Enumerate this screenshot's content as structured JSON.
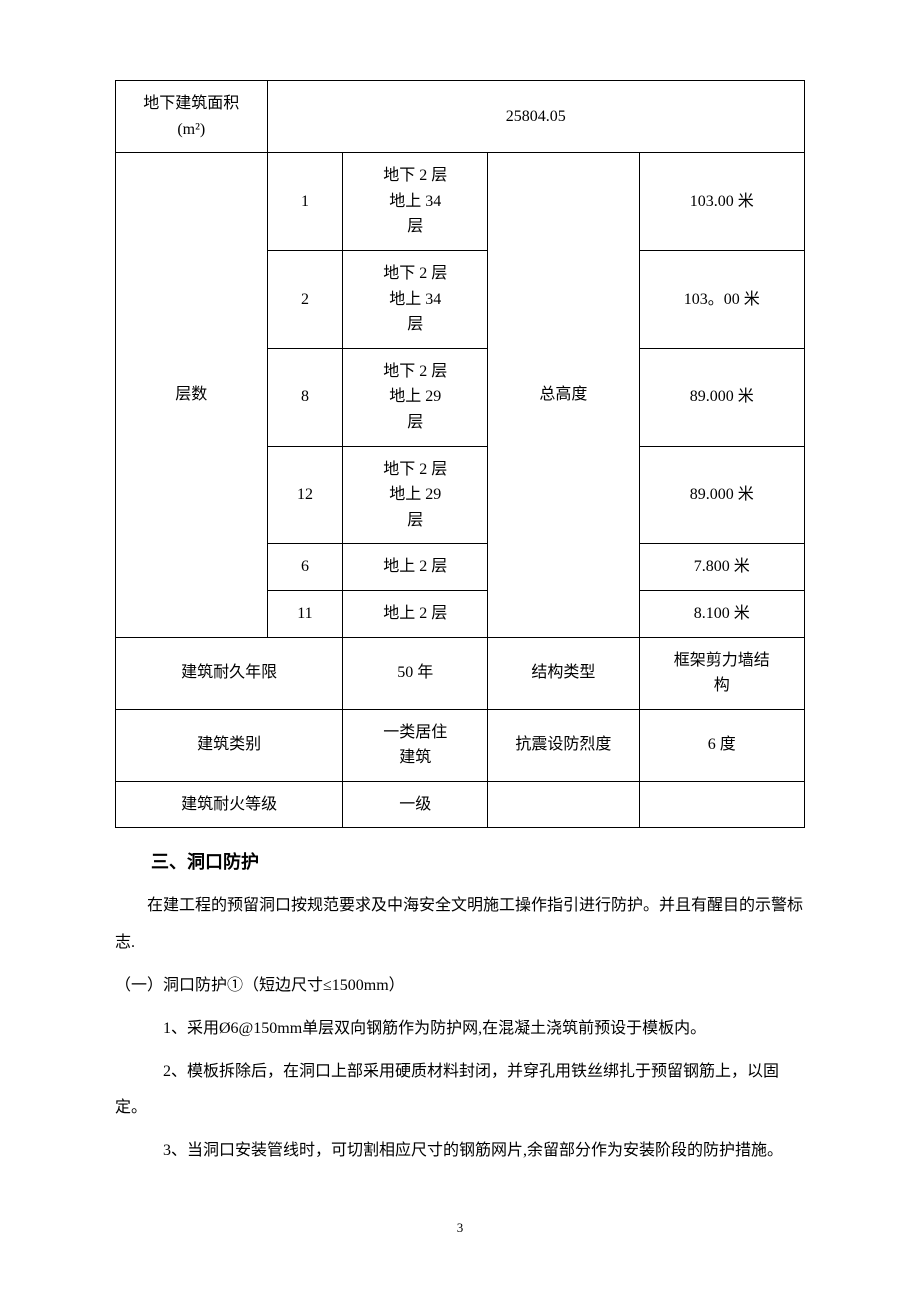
{
  "table": {
    "row_underground_area": {
      "label": "地下建筑面积\n(m²)",
      "value": "25804.05"
    },
    "floors_section": {
      "row_label": "层数",
      "height_label": "总高度",
      "rows": [
        {
          "num": "1",
          "desc": "地下 2 层\n地上 34\n层",
          "height": "103.00 米"
        },
        {
          "num": "2",
          "desc": "地下 2 层\n地上 34\n层",
          "height": "103。00 米"
        },
        {
          "num": "8",
          "desc": "地下 2 层\n地上 29\n层",
          "height": "89.000 米"
        },
        {
          "num": "12",
          "desc": "地下 2 层\n地上 29\n层",
          "height": "89.000 米"
        },
        {
          "num": "6",
          "desc": "地上 2 层",
          "height": "7.800 米"
        },
        {
          "num": "11",
          "desc": "地上 2 层",
          "height": "8.100 米"
        }
      ]
    },
    "durability": {
      "label": "建筑耐久年限",
      "value": "50 年",
      "structure_label": "结构类型",
      "structure_value": "框架剪力墙结\n构"
    },
    "category": {
      "label": "建筑类别",
      "value": "一类居住\n建筑",
      "seismic_label": "抗震设防烈度",
      "seismic_value": "6 度"
    },
    "fire_rating": {
      "label": "建筑耐火等级",
      "value": "一级"
    }
  },
  "section_heading": "三、洞口防护",
  "paragraphs": {
    "p1": "在建工程的预留洞口按规范要求及中海安全文明施工操作指引进行防护。并且有醒目的示警标志.",
    "p2": "（一）洞口防护①（短边尺寸≤1500mm）",
    "p3": "1、采用Ø6@150mm单层双向钢筋作为防护网,在混凝土浇筑前预设于模板内。",
    "p4": "2、模板拆除后，在洞口上部采用硬质材料封闭，并穿孔用铁丝绑扎于预留钢筋上，以固定。",
    "p5": "3、当洞口安装管线时，可切割相应尺寸的钢筋网片,余留部分作为安装阶段的防护措施。"
  },
  "page_number": "3"
}
